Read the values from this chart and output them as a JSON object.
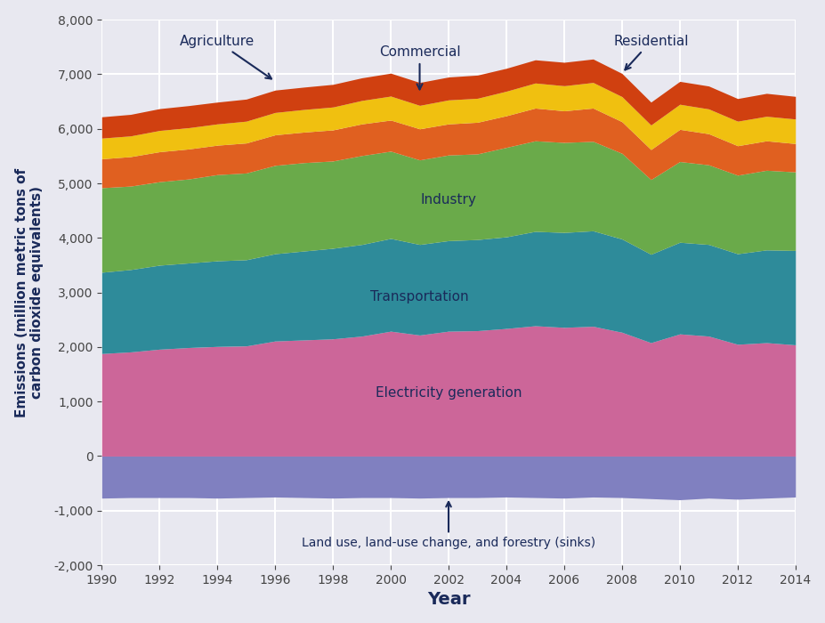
{
  "years": [
    1990,
    1991,
    1992,
    1993,
    1994,
    1995,
    1996,
    1997,
    1998,
    1999,
    2000,
    2001,
    2002,
    2003,
    2004,
    2005,
    2006,
    2007,
    2008,
    2009,
    2010,
    2011,
    2012,
    2013,
    2014
  ],
  "land_use": [
    -770,
    -760,
    -760,
    -760,
    -770,
    -760,
    -750,
    -760,
    -770,
    -760,
    -760,
    -770,
    -760,
    -760,
    -750,
    -760,
    -770,
    -750,
    -760,
    -780,
    -800,
    -770,
    -790,
    -770,
    -750
  ],
  "electricity": [
    1880,
    1910,
    1960,
    1990,
    2010,
    2020,
    2110,
    2130,
    2150,
    2200,
    2290,
    2220,
    2290,
    2300,
    2340,
    2390,
    2360,
    2380,
    2270,
    2080,
    2240,
    2200,
    2050,
    2080,
    2040
  ],
  "transportation": [
    1490,
    1510,
    1540,
    1550,
    1570,
    1580,
    1600,
    1630,
    1660,
    1680,
    1700,
    1660,
    1660,
    1670,
    1680,
    1730,
    1740,
    1750,
    1710,
    1620,
    1680,
    1680,
    1660,
    1700,
    1730
  ],
  "industry": [
    1550,
    1530,
    1530,
    1540,
    1580,
    1590,
    1620,
    1620,
    1600,
    1630,
    1600,
    1550,
    1570,
    1570,
    1640,
    1660,
    1650,
    1640,
    1570,
    1370,
    1480,
    1460,
    1440,
    1460,
    1440
  ],
  "residential": [
    530,
    540,
    550,
    550,
    540,
    550,
    560,
    560,
    570,
    580,
    570,
    570,
    570,
    580,
    580,
    600,
    580,
    610,
    580,
    550,
    590,
    570,
    540,
    540,
    520
  ],
  "commercial": [
    380,
    380,
    390,
    390,
    390,
    400,
    410,
    415,
    420,
    430,
    440,
    430,
    440,
    440,
    450,
    460,
    460,
    470,
    460,
    450,
    460,
    455,
    450,
    450,
    450
  ],
  "agriculture": [
    390,
    395,
    400,
    405,
    400,
    405,
    410,
    410,
    415,
    415,
    420,
    420,
    420,
    425,
    420,
    425,
    430,
    430,
    425,
    420,
    420,
    420,
    415,
    420,
    415
  ],
  "colors": {
    "land_use": "#8080c0",
    "electricity": "#cc6699",
    "transportation": "#2e8b9a",
    "industry": "#6aaa4a",
    "residential": "#e06020",
    "commercial": "#f0c010",
    "agriculture": "#d04010"
  },
  "bg_color": "#e8e8f0",
  "grid_color": "#ffffff",
  "xlabel": "Year",
  "ylabel": "Emissions (million metric tons of\ncarbon dioxide equivalents)",
  "label_color": "#1a2a5a",
  "ylim": [
    -2000,
    8000
  ],
  "yticks": [
    -2000,
    -1000,
    0,
    1000,
    2000,
    3000,
    4000,
    5000,
    6000,
    7000,
    8000
  ],
  "xticks": [
    1990,
    1992,
    1994,
    1996,
    1998,
    2000,
    2002,
    2004,
    2006,
    2008,
    2010,
    2012,
    2014
  ]
}
